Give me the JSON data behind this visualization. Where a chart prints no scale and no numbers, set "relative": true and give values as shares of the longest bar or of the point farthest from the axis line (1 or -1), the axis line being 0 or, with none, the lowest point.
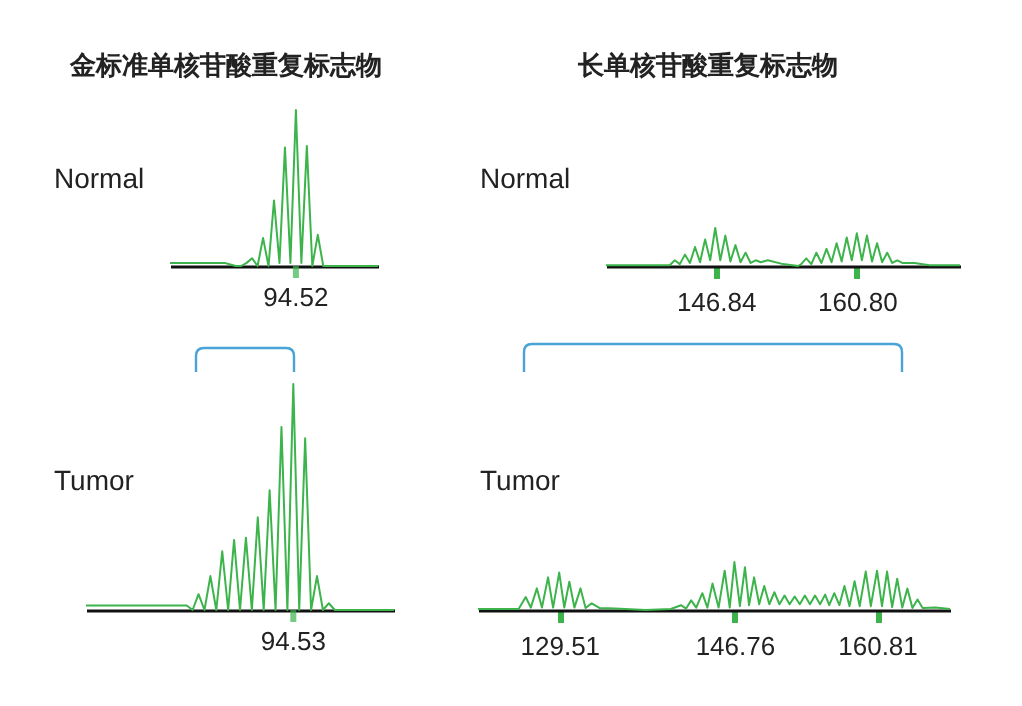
{
  "chart_data": [
    {
      "type": "line",
      "title": "金标准单核苷酸重复标志物",
      "annotations": [
        "Normal",
        "94.52"
      ],
      "relative": true,
      "color": "#3cb44b",
      "categories": [
        null,
        null,
        null,
        null,
        null,
        null,
        null,
        null,
        null,
        null,
        null,
        null,
        null,
        null,
        null,
        null,
        null,
        null,
        null,
        null,
        null,
        null,
        null,
        null,
        null,
        null,
        null,
        null,
        null,
        null,
        null,
        null,
        null,
        null,
        null,
        null,
        null,
        null,
        null
      ],
      "values": [
        0.02,
        0.02,
        0.02,
        0.02,
        0.02,
        0.02,
        0.02,
        0.02,
        0.02,
        0.02,
        0.02,
        0.01,
        0,
        0,
        0.02,
        0.05,
        0,
        0.18,
        0,
        0.42,
        0.02,
        0.76,
        0.02,
        1,
        0.02,
        0.77,
        0,
        0.2,
        0,
        0,
        0,
        0,
        0,
        0,
        0,
        0,
        0,
        0,
        0
      ]
    },
    {
      "type": "line",
      "title": "长单核苷酸重复标志物",
      "annotations": [
        "Normal"
      ],
      "relative": true,
      "tick_labels": "x",
      "color": "#3cb44b",
      "xlim": [
        136,
        171
      ],
      "xticks": [
        146.84,
        {
          "value": 160.8,
          "label": "160.80"
        }
      ],
      "x": [
        136,
        141,
        142.3,
        142.8,
        143.3,
        143.8,
        144.3,
        144.8,
        145.3,
        145.8,
        146.3,
        146.8,
        147.3,
        147.8,
        148.3,
        148.8,
        149.3,
        149.8,
        150.3,
        150.8,
        151.3,
        152,
        153.5,
        155,
        155.3,
        155.8,
        156.3,
        156.8,
        157.3,
        157.8,
        158.3,
        158.8,
        159.3,
        159.8,
        160.3,
        160.8,
        161.3,
        161.8,
        162.3,
        162.8,
        163.3,
        163.8,
        164.3,
        164.8,
        165.3,
        166.5,
        168,
        171
      ],
      "values": [
        0.02,
        0.02,
        0.02,
        0.15,
        0.05,
        0.3,
        0.08,
        0.5,
        0.1,
        0.7,
        0.15,
        1,
        0.15,
        0.8,
        0.12,
        0.55,
        0.1,
        0.35,
        0.08,
        0.15,
        0.1,
        0.15,
        0.05,
        0,
        0.05,
        0.2,
        0.05,
        0.35,
        0.08,
        0.45,
        0.1,
        0.6,
        0.12,
        0.75,
        0.15,
        0.86,
        0.15,
        0.8,
        0.12,
        0.6,
        0.1,
        0.35,
        0.08,
        0.15,
        0.08,
        0.08,
        0.02,
        0.02
      ]
    },
    {
      "type": "line",
      "annotations": [
        "Tumor",
        "94.53"
      ],
      "relative": true,
      "color": "#3cb44b",
      "categories": [
        null,
        null,
        null,
        null,
        null,
        null,
        null,
        null,
        null,
        null,
        null,
        null,
        null,
        null,
        null,
        null,
        null,
        null,
        null,
        null,
        null,
        null,
        null,
        null,
        null,
        null,
        null,
        null,
        null,
        null,
        null,
        null,
        null,
        null,
        null,
        null,
        null,
        null,
        null,
        null,
        null,
        null,
        null,
        null,
        null,
        null,
        null,
        null,
        null,
        null,
        null,
        null,
        null
      ],
      "values": [
        0.02,
        0.02,
        0.02,
        0.02,
        0.02,
        0.02,
        0.02,
        0.02,
        0.02,
        0.02,
        0.02,
        0.02,
        0.02,
        0.02,
        0.02,
        0.02,
        0.02,
        0.02,
        0,
        0.07,
        0,
        0.15,
        0,
        0.26,
        0,
        0.31,
        0,
        0.32,
        0,
        0.41,
        0,
        0.53,
        0,
        0.81,
        0,
        1,
        0,
        0.76,
        0,
        0.15,
        0,
        0.03,
        0,
        0,
        0,
        0,
        0,
        0,
        0,
        0,
        0,
        0,
        0
      ]
    },
    {
      "type": "line",
      "annotations": [
        "Tumor"
      ],
      "relative": true,
      "tick_labels": "x",
      "color": "#3cb44b",
      "xlim": [
        121.5,
        168
      ],
      "xticks": [
        129.51,
        146.76,
        160.81
      ],
      "x": [
        121.5,
        125.5,
        126.2,
        126.7,
        127.3,
        127.8,
        128.4,
        128.9,
        129.5,
        130,
        130.5,
        131,
        131.6,
        132.1,
        132.7,
        133.5,
        135,
        138,
        140.5,
        141.5,
        142,
        142.5,
        143,
        143.6,
        144.1,
        144.6,
        145.2,
        145.8,
        146.3,
        146.76,
        147.3,
        147.8,
        148.2,
        148.7,
        149.2,
        149.7,
        150.2,
        150.7,
        151.2,
        151.7,
        152.2,
        152.7,
        153.2,
        153.7,
        154.2,
        154.7,
        155.2,
        155.7,
        156.1,
        156.6,
        157.1,
        157.6,
        158.1,
        158.6,
        159.1,
        159.7,
        160.2,
        160.81,
        161.3,
        161.8,
        162.3,
        162.8,
        163.3,
        163.8,
        164.3,
        164.8,
        165.3,
        166.6,
        168
      ],
      "values": [
        0.02,
        0.02,
        0.27,
        0.05,
        0.45,
        0.05,
        0.68,
        0.05,
        0.78,
        0.05,
        0.59,
        0.05,
        0.45,
        0.04,
        0.14,
        0.04,
        0.03,
        0,
        0.02,
        0.1,
        0.03,
        0.2,
        0.05,
        0.35,
        0.05,
        0.55,
        0.05,
        0.82,
        0.05,
        1,
        0.08,
        0.89,
        0.1,
        0.68,
        0.12,
        0.5,
        0.12,
        0.37,
        0.12,
        0.3,
        0.12,
        0.28,
        0.12,
        0.3,
        0.12,
        0.3,
        0.12,
        0.32,
        0.1,
        0.35,
        0.1,
        0.5,
        0.08,
        0.6,
        0.08,
        0.8,
        0.08,
        0.82,
        0.08,
        0.8,
        0.06,
        0.65,
        0.05,
        0.45,
        0.04,
        0.22,
        0.04,
        0.05,
        0.02
      ]
    }
  ]
}
